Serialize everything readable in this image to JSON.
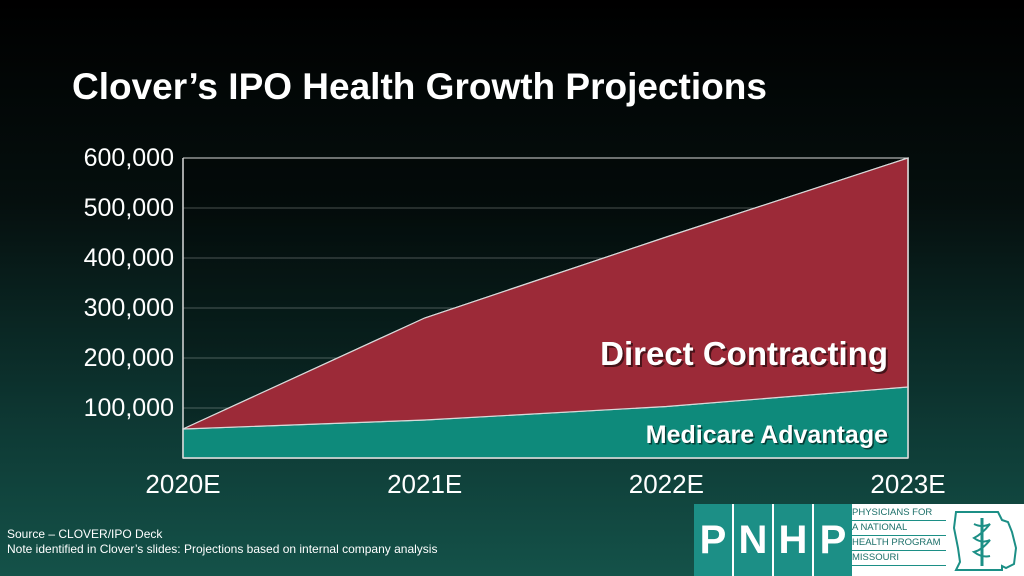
{
  "chart_data": {
    "type": "area",
    "title": "Clover’s IPO Health Growth Projections",
    "categories": [
      "2020E",
      "2021E",
      "2022E",
      "2023E"
    ],
    "stacked": true,
    "series": [
      {
        "name": "Medicare Advantage",
        "values": [
          58000,
          76000,
          103000,
          142000
        ],
        "color": "#0e8a7b"
      },
      {
        "name": "Direct Contracting",
        "values": [
          0,
          204000,
          339000,
          458000
        ],
        "color": "#9c2a38"
      }
    ],
    "ylim": [
      0,
      600000
    ],
    "yticks": [
      "600,000",
      "500,000",
      "400,000",
      "300,000",
      "200,000",
      "100,000"
    ],
    "ytick_values": [
      600000,
      500000,
      400000,
      300000,
      200000,
      100000
    ],
    "grid": true
  },
  "footer": {
    "source": "Source – CLOVER/IPO Deck",
    "note": "Note identified in Clover’s slides: Projections based on internal company analysis"
  },
  "logo": {
    "letters": [
      "P",
      "N",
      "H",
      "P"
    ],
    "lines": [
      "PHYSICIANS FOR",
      "A NATIONAL",
      "HEALTH PROGRAM",
      "MISSOURI"
    ],
    "brand_color": "#1c8f86",
    "icon": "missouri-state-caduceus-icon"
  }
}
